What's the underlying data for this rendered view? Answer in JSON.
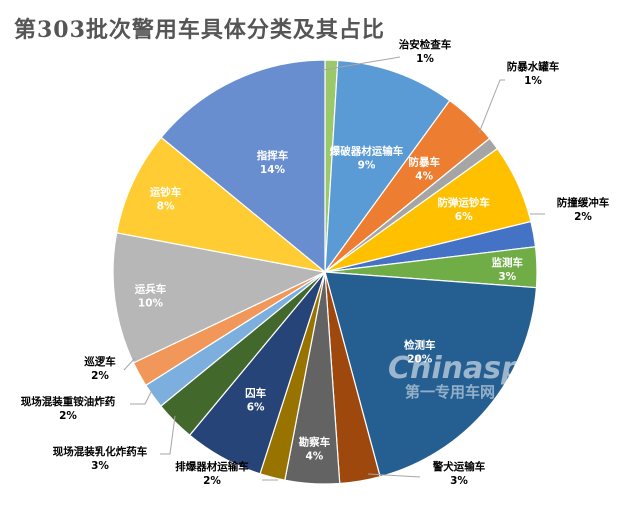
{
  "chart_data": {
    "type": "pie",
    "title": "第303批次警用车具体分类及其占比",
    "slices": [
      {
        "name": "治安检查车",
        "pct": "1%",
        "value": 1.0,
        "color": "#9BC96A"
      },
      {
        "name": "爆破器材运输车",
        "pct": "9%",
        "value": 9.4,
        "color": "#5B9BD5"
      },
      {
        "name": "防暴车",
        "pct": "4%",
        "value": 4.3,
        "color": "#ED7D31"
      },
      {
        "name": "防暴水罐车",
        "pct": "1%",
        "value": 1.0,
        "color": "#A5A5A5"
      },
      {
        "name": "防弹运钞车",
        "pct": "6%",
        "value": 6.3,
        "color": "#FFC000"
      },
      {
        "name": "防撞缓冲车",
        "pct": "2%",
        "value": 2.0,
        "color": "#4472C4"
      },
      {
        "name": "监测车",
        "pct": "3%",
        "value": 3.2,
        "color": "#70AD47"
      },
      {
        "name": "检测车",
        "pct": "20%",
        "value": 20.4,
        "color": "#255E91"
      },
      {
        "name": "警犬运输车",
        "pct": "3%",
        "value": 3.2,
        "color": "#9E480E"
      },
      {
        "name": "勘察车",
        "pct": "4%",
        "value": 4.3,
        "color": "#636363"
      },
      {
        "name": "排爆器材运输车",
        "pct": "2%",
        "value": 2.0,
        "color": "#997300"
      },
      {
        "name": "囚车",
        "pct": "6%",
        "value": 6.3,
        "color": "#264478"
      },
      {
        "name": "现场混装乳化炸药车",
        "pct": "3%",
        "value": 3.2,
        "color": "#43682B"
      },
      {
        "name": "现场混装重铵油炸药",
        "pct": "2%",
        "value": 2.0,
        "color": "#7CAFDD"
      },
      {
        "name": "巡逻车",
        "pct": "2%",
        "value": 2.0,
        "color": "#F1975A"
      },
      {
        "name": "运兵车",
        "pct": "10%",
        "value": 10.4,
        "color": "#B7B7B7"
      },
      {
        "name": "运钞车",
        "pct": "8%",
        "value": 8.3,
        "color": "#FFCD33"
      },
      {
        "name": "指挥车",
        "pct": "14%",
        "value": 14.6,
        "color": "#698ED0"
      }
    ]
  },
  "watermark": {
    "main": "Chinaspv",
    "sub": "第一专用车网"
  }
}
